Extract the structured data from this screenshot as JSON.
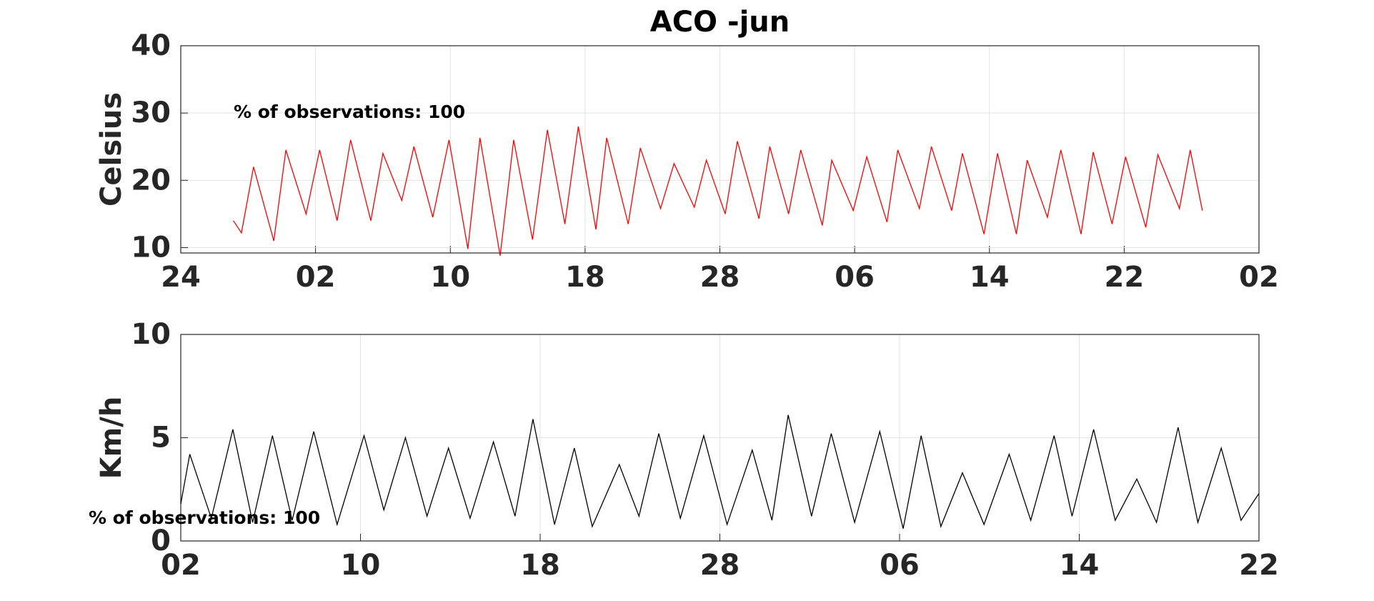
{
  "chart_data": [
    {
      "type": "line",
      "title": "ACO -jun",
      "y_label": "Celsius",
      "annotation": "% of observations: 100",
      "color": "#ff0000",
      "grid": true,
      "xlim": [
        0,
        8
      ],
      "xticks": [
        {
          "value": 0,
          "label": "24"
        },
        {
          "value": 1,
          "label": "02"
        },
        {
          "value": 2,
          "label": "10"
        },
        {
          "value": 3,
          "label": "18"
        },
        {
          "value": 4,
          "label": "28"
        },
        {
          "value": 5,
          "label": "06"
        },
        {
          "value": 6,
          "label": "14"
        },
        {
          "value": 7,
          "label": "22"
        },
        {
          "value": 8,
          "label": "02"
        }
      ],
      "ylim": [
        9.2,
        40
      ],
      "yticks": [
        10,
        20,
        30,
        40
      ],
      "x": [
        0.39,
        0.45,
        0.54,
        0.69,
        0.78,
        0.93,
        1.03,
        1.16,
        1.26,
        1.41,
        1.5,
        1.64,
        1.73,
        1.87,
        1.99,
        2.13,
        2.22,
        2.37,
        2.47,
        2.61,
        2.72,
        2.85,
        2.95,
        3.08,
        3.16,
        3.32,
        3.41,
        3.56,
        3.66,
        3.81,
        3.9,
        4.04,
        4.13,
        4.29,
        4.37,
        4.51,
        4.6,
        4.76,
        4.83,
        4.99,
        5.09,
        5.24,
        5.32,
        5.48,
        5.57,
        5.72,
        5.8,
        5.96,
        6.06,
        6.2,
        6.28,
        6.43,
        6.53,
        6.68,
        6.77,
        6.91,
        7.01,
        7.16,
        7.25,
        7.41,
        7.49,
        7.58
      ],
      "values": [
        14,
        12.2,
        22,
        11,
        24.5,
        15,
        24.5,
        14,
        26,
        14,
        24,
        17,
        25,
        14.5,
        26,
        9.8,
        26.3,
        8.8,
        26,
        11.2,
        27.5,
        13.5,
        28,
        12.7,
        26.3,
        13.5,
        24.8,
        15.8,
        22.5,
        16,
        23,
        15,
        25.8,
        14.3,
        25,
        15,
        24.5,
        13.3,
        23,
        15.5,
        23.5,
        13.8,
        24.5,
        15.8,
        25,
        15.5,
        24,
        12,
        24,
        12,
        23,
        14.5,
        24.5,
        12,
        24.2,
        13.5,
        23.5,
        13,
        23.8,
        15.8,
        24.5,
        15.5
      ]
    },
    {
      "type": "line",
      "y_label": "Km/h",
      "annotation": "% of observations: 100",
      "color": "#000000",
      "grid": true,
      "xlim": [
        0,
        6
      ],
      "xticks": [
        {
          "value": 0,
          "label": "02"
        },
        {
          "value": 1,
          "label": "10"
        },
        {
          "value": 2,
          "label": "18"
        },
        {
          "value": 3,
          "label": "28"
        },
        {
          "value": 4,
          "label": "06"
        },
        {
          "value": 5,
          "label": "14"
        },
        {
          "value": 6,
          "label": "22"
        }
      ],
      "ylim": [
        0,
        10
      ],
      "yticks": [
        0,
        5,
        10
      ],
      "x": [
        0,
        0.05,
        0.17,
        0.29,
        0.4,
        0.51,
        0.62,
        0.74,
        0.87,
        1.02,
        1.13,
        1.25,
        1.37,
        1.49,
        1.61,
        1.74,
        1.86,
        1.96,
        2.08,
        2.19,
        2.29,
        2.44,
        2.55,
        2.66,
        2.78,
        2.91,
        3.04,
        3.18,
        3.29,
        3.38,
        3.51,
        3.62,
        3.75,
        3.89,
        4.02,
        4.12,
        4.23,
        4.35,
        4.47,
        4.61,
        4.73,
        4.86,
        4.96,
        5.08,
        5.2,
        5.32,
        5.43,
        5.55,
        5.66,
        5.79,
        5.9,
        6
      ],
      "values": [
        1.8,
        4.2,
        1.1,
        5.4,
        0.9,
        5.1,
        1.0,
        5.3,
        0.8,
        5.1,
        1.5,
        5.0,
        1.2,
        4.5,
        1.1,
        4.8,
        1.2,
        5.9,
        0.8,
        4.5,
        0.7,
        3.7,
        1.2,
        5.2,
        1.1,
        5.1,
        0.8,
        4.4,
        1.0,
        6.1,
        1.2,
        5.2,
        0.9,
        5.3,
        0.6,
        5.1,
        0.7,
        3.3,
        0.8,
        4.2,
        1.0,
        5.1,
        1.2,
        5.4,
        1.0,
        3.0,
        0.9,
        5.5,
        0.9,
        4.5,
        1.0,
        2.3
      ]
    }
  ]
}
